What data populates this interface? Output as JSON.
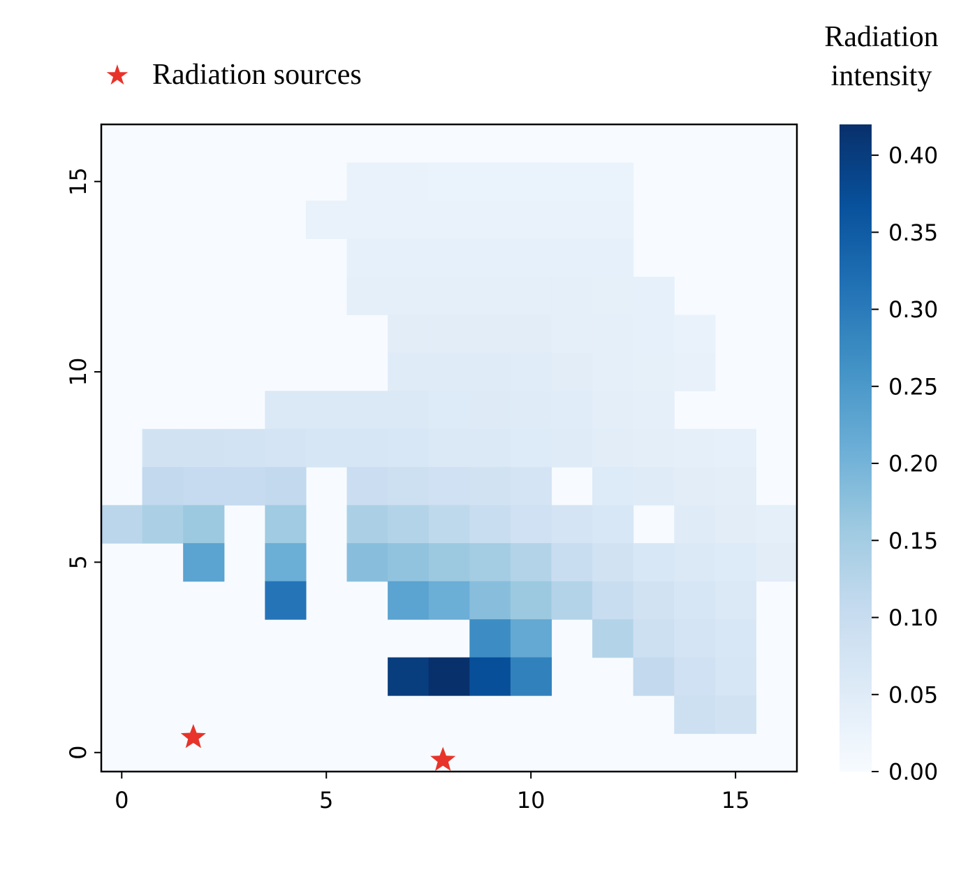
{
  "chart_data": {
    "type": "heatmap",
    "title": "",
    "xlabel": "",
    "ylabel": "",
    "x_range": [
      -0.5,
      16.5
    ],
    "y_range": [
      -0.5,
      16.5
    ],
    "x_ticks": [
      0,
      5,
      10,
      15
    ],
    "y_ticks": [
      0,
      5,
      10,
      15
    ],
    "colormap": "Blues",
    "colorbar": {
      "title_lines": [
        "Radiation",
        "intensity"
      ],
      "range": [
        0.0,
        0.42
      ],
      "ticks": [
        "0.00",
        "0.05",
        "0.10",
        "0.15",
        "0.20",
        "0.25",
        "0.30",
        "0.35",
        "0.40"
      ]
    },
    "grid": false,
    "legend": {
      "placement": "top-left, above plot",
      "label": "Radiation sources",
      "marker_color": "#e8332a"
    },
    "cell_value_note": "cells not listed have value 0.00",
    "cells": [
      {
        "x": 6,
        "y": 15,
        "v": 0.03
      },
      {
        "x": 7,
        "y": 15,
        "v": 0.03
      },
      {
        "x": 8,
        "y": 15,
        "v": 0.028
      },
      {
        "x": 9,
        "y": 15,
        "v": 0.028
      },
      {
        "x": 10,
        "y": 15,
        "v": 0.028
      },
      {
        "x": 11,
        "y": 15,
        "v": 0.027
      },
      {
        "x": 12,
        "y": 15,
        "v": 0.027
      },
      {
        "x": 5,
        "y": 14,
        "v": 0.03
      },
      {
        "x": 6,
        "y": 14,
        "v": 0.03
      },
      {
        "x": 7,
        "y": 14,
        "v": 0.03
      },
      {
        "x": 8,
        "y": 14,
        "v": 0.03
      },
      {
        "x": 9,
        "y": 14,
        "v": 0.03
      },
      {
        "x": 10,
        "y": 14,
        "v": 0.03
      },
      {
        "x": 11,
        "y": 14,
        "v": 0.03
      },
      {
        "x": 12,
        "y": 14,
        "v": 0.03
      },
      {
        "x": 6,
        "y": 13,
        "v": 0.035
      },
      {
        "x": 7,
        "y": 13,
        "v": 0.035
      },
      {
        "x": 8,
        "y": 13,
        "v": 0.035
      },
      {
        "x": 9,
        "y": 13,
        "v": 0.035
      },
      {
        "x": 10,
        "y": 13,
        "v": 0.035
      },
      {
        "x": 11,
        "y": 13,
        "v": 0.035
      },
      {
        "x": 12,
        "y": 13,
        "v": 0.035
      },
      {
        "x": 6,
        "y": 12,
        "v": 0.04
      },
      {
        "x": 7,
        "y": 12,
        "v": 0.04
      },
      {
        "x": 8,
        "y": 12,
        "v": 0.04
      },
      {
        "x": 9,
        "y": 12,
        "v": 0.04
      },
      {
        "x": 10,
        "y": 12,
        "v": 0.04
      },
      {
        "x": 11,
        "y": 12,
        "v": 0.038
      },
      {
        "x": 12,
        "y": 12,
        "v": 0.037
      },
      {
        "x": 13,
        "y": 12,
        "v": 0.035
      },
      {
        "x": 7,
        "y": 11,
        "v": 0.045
      },
      {
        "x": 8,
        "y": 11,
        "v": 0.045
      },
      {
        "x": 9,
        "y": 11,
        "v": 0.045
      },
      {
        "x": 10,
        "y": 11,
        "v": 0.045
      },
      {
        "x": 11,
        "y": 11,
        "v": 0.04
      },
      {
        "x": 12,
        "y": 11,
        "v": 0.038
      },
      {
        "x": 13,
        "y": 11,
        "v": 0.035
      },
      {
        "x": 14,
        "y": 11,
        "v": 0.03
      },
      {
        "x": 7,
        "y": 10,
        "v": 0.05
      },
      {
        "x": 8,
        "y": 10,
        "v": 0.05
      },
      {
        "x": 9,
        "y": 10,
        "v": 0.05
      },
      {
        "x": 10,
        "y": 10,
        "v": 0.048
      },
      {
        "x": 11,
        "y": 10,
        "v": 0.045
      },
      {
        "x": 12,
        "y": 10,
        "v": 0.04
      },
      {
        "x": 13,
        "y": 10,
        "v": 0.037
      },
      {
        "x": 14,
        "y": 10,
        "v": 0.032
      },
      {
        "x": 4,
        "y": 9,
        "v": 0.06
      },
      {
        "x": 5,
        "y": 9,
        "v": 0.06
      },
      {
        "x": 6,
        "y": 9,
        "v": 0.058
      },
      {
        "x": 7,
        "y": 9,
        "v": 0.058
      },
      {
        "x": 8,
        "y": 9,
        "v": 0.055
      },
      {
        "x": 9,
        "y": 9,
        "v": 0.052
      },
      {
        "x": 10,
        "y": 9,
        "v": 0.05
      },
      {
        "x": 11,
        "y": 9,
        "v": 0.048
      },
      {
        "x": 12,
        "y": 9,
        "v": 0.042
      },
      {
        "x": 13,
        "y": 9,
        "v": 0.038
      },
      {
        "x": 1,
        "y": 8,
        "v": 0.08
      },
      {
        "x": 2,
        "y": 8,
        "v": 0.08
      },
      {
        "x": 3,
        "y": 8,
        "v": 0.078
      },
      {
        "x": 4,
        "y": 8,
        "v": 0.075
      },
      {
        "x": 5,
        "y": 8,
        "v": 0.07
      },
      {
        "x": 6,
        "y": 8,
        "v": 0.068
      },
      {
        "x": 7,
        "y": 8,
        "v": 0.065
      },
      {
        "x": 8,
        "y": 8,
        "v": 0.06
      },
      {
        "x": 9,
        "y": 8,
        "v": 0.058
      },
      {
        "x": 10,
        "y": 8,
        "v": 0.055
      },
      {
        "x": 11,
        "y": 8,
        "v": 0.05
      },
      {
        "x": 12,
        "y": 8,
        "v": 0.045
      },
      {
        "x": 13,
        "y": 8,
        "v": 0.042
      },
      {
        "x": 14,
        "y": 8,
        "v": 0.038
      },
      {
        "x": 15,
        "y": 8,
        "v": 0.035
      },
      {
        "x": 1,
        "y": 7,
        "v": 0.11
      },
      {
        "x": 2,
        "y": 7,
        "v": 0.105
      },
      {
        "x": 3,
        "y": 7,
        "v": 0.105
      },
      {
        "x": 4,
        "y": 7,
        "v": 0.11
      },
      {
        "x": 6,
        "y": 7,
        "v": 0.095
      },
      {
        "x": 7,
        "y": 7,
        "v": 0.09
      },
      {
        "x": 8,
        "y": 7,
        "v": 0.085
      },
      {
        "x": 9,
        "y": 7,
        "v": 0.08
      },
      {
        "x": 10,
        "y": 7,
        "v": 0.075
      },
      {
        "x": 12,
        "y": 7,
        "v": 0.055
      },
      {
        "x": 13,
        "y": 7,
        "v": 0.05
      },
      {
        "x": 14,
        "y": 7,
        "v": 0.045
      },
      {
        "x": 15,
        "y": 7,
        "v": 0.042
      },
      {
        "x": 0,
        "y": 6,
        "v": 0.12
      },
      {
        "x": 1,
        "y": 6,
        "v": 0.14
      },
      {
        "x": 2,
        "y": 6,
        "v": 0.16
      },
      {
        "x": 4,
        "y": 6,
        "v": 0.155
      },
      {
        "x": 6,
        "y": 6,
        "v": 0.14
      },
      {
        "x": 7,
        "y": 6,
        "v": 0.13
      },
      {
        "x": 8,
        "y": 6,
        "v": 0.115
      },
      {
        "x": 9,
        "y": 6,
        "v": 0.1
      },
      {
        "x": 10,
        "y": 6,
        "v": 0.085
      },
      {
        "x": 11,
        "y": 6,
        "v": 0.075
      },
      {
        "x": 12,
        "y": 6,
        "v": 0.065
      },
      {
        "x": 14,
        "y": 6,
        "v": 0.05
      },
      {
        "x": 15,
        "y": 6,
        "v": 0.045
      },
      {
        "x": 16,
        "y": 6,
        "v": 0.04
      },
      {
        "x": 2,
        "y": 5,
        "v": 0.23
      },
      {
        "x": 4,
        "y": 5,
        "v": 0.21
      },
      {
        "x": 6,
        "y": 5,
        "v": 0.18
      },
      {
        "x": 7,
        "y": 5,
        "v": 0.17
      },
      {
        "x": 8,
        "y": 5,
        "v": 0.16
      },
      {
        "x": 9,
        "y": 5,
        "v": 0.15
      },
      {
        "x": 10,
        "y": 5,
        "v": 0.13
      },
      {
        "x": 11,
        "y": 5,
        "v": 0.1
      },
      {
        "x": 12,
        "y": 5,
        "v": 0.08
      },
      {
        "x": 13,
        "y": 5,
        "v": 0.065
      },
      {
        "x": 14,
        "y": 5,
        "v": 0.06
      },
      {
        "x": 15,
        "y": 5,
        "v": 0.055
      },
      {
        "x": 16,
        "y": 5,
        "v": 0.045
      },
      {
        "x": 4,
        "y": 4,
        "v": 0.31
      },
      {
        "x": 7,
        "y": 4,
        "v": 0.23
      },
      {
        "x": 8,
        "y": 4,
        "v": 0.21
      },
      {
        "x": 9,
        "y": 4,
        "v": 0.18
      },
      {
        "x": 10,
        "y": 4,
        "v": 0.16
      },
      {
        "x": 11,
        "y": 4,
        "v": 0.13
      },
      {
        "x": 12,
        "y": 4,
        "v": 0.1
      },
      {
        "x": 13,
        "y": 4,
        "v": 0.08
      },
      {
        "x": 14,
        "y": 4,
        "v": 0.07
      },
      {
        "x": 15,
        "y": 4,
        "v": 0.06
      },
      {
        "x": 9,
        "y": 3,
        "v": 0.27
      },
      {
        "x": 10,
        "y": 3,
        "v": 0.22
      },
      {
        "x": 12,
        "y": 3,
        "v": 0.13
      },
      {
        "x": 13,
        "y": 3,
        "v": 0.09
      },
      {
        "x": 14,
        "y": 3,
        "v": 0.075
      },
      {
        "x": 15,
        "y": 3,
        "v": 0.065
      },
      {
        "x": 7,
        "y": 2,
        "v": 0.4
      },
      {
        "x": 8,
        "y": 2,
        "v": 0.42
      },
      {
        "x": 9,
        "y": 2,
        "v": 0.37
      },
      {
        "x": 10,
        "y": 2,
        "v": 0.29
      },
      {
        "x": 13,
        "y": 2,
        "v": 0.11
      },
      {
        "x": 14,
        "y": 2,
        "v": 0.085
      },
      {
        "x": 15,
        "y": 2,
        "v": 0.07
      },
      {
        "x": 14,
        "y": 1,
        "v": 0.09
      },
      {
        "x": 15,
        "y": 1,
        "v": 0.08
      }
    ],
    "sources": [
      {
        "x": 1.75,
        "y": 0.4
      },
      {
        "x": 7.85,
        "y": -0.2
      }
    ]
  }
}
